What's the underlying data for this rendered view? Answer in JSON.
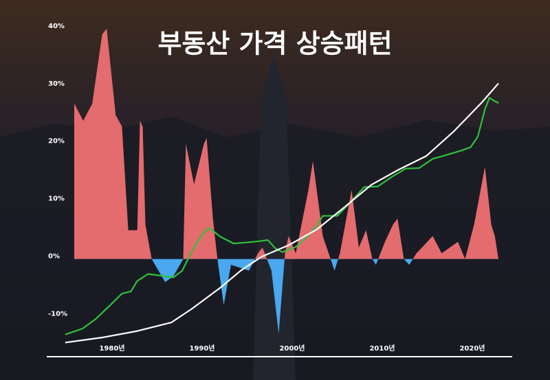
{
  "chart_data": {
    "type": "area-line",
    "title": "부동산 가격 상승패턴",
    "xlim": [
      1974,
      2025
    ],
    "xticks": [
      {
        "value": 1980,
        "label": "1980년"
      },
      {
        "value": 1990,
        "label": "1990년"
      },
      {
        "value": 2000,
        "label": "2000년"
      },
      {
        "value": 2010,
        "label": "2010년"
      },
      {
        "value": 2020,
        "label": "2020년"
      }
    ],
    "ylim": [
      -16,
      42
    ],
    "yticks": [
      {
        "value": -10,
        "label": "-10%"
      },
      {
        "value": 0,
        "label": "0%"
      },
      {
        "value": 10,
        "label": "10%"
      },
      {
        "value": 20,
        "label": "20%"
      },
      {
        "value": 30,
        "label": "30%"
      },
      {
        "value": 40,
        "label": "40%"
      }
    ],
    "grid": false,
    "series": [
      {
        "type": "area",
        "color": "#e46b6e",
        "negative_color": "#4aa8f0",
        "x": [
          1975.8,
          1976.8,
          1977.8,
          1978.9,
          1979.4,
          1980.4,
          1981.1,
          1981.8,
          1982.8,
          1983.1,
          1983.4,
          1983.7,
          1984.4,
          1985.9,
          1986.8,
          1987.9,
          1988.2,
          1989.1,
          1990.2,
          1990.5,
          1991.2,
          1991.7,
          1992.4,
          1993.2,
          1995.2,
          1996.2,
          1996.7,
          1997.7,
          1998.5,
          1999.2,
          1999.6,
          2000.4,
          2001.8,
          2002.3,
          2003.4,
          2004.7,
          2005.3,
          2006.6,
          2007.4,
          2008.2,
          2008.9,
          2009.3,
          2010.3,
          2011.2,
          2011.7,
          2012.4,
          2013.0,
          2013.8,
          2015.6,
          2016.6,
          2018.4,
          2019.2,
          2020.2,
          2021.4,
          2022.1,
          2022.5,
          2022.9
        ],
        "values": [
          27,
          24,
          27,
          39,
          40,
          25,
          23,
          5,
          5,
          24,
          23,
          6,
          0,
          -4,
          -3,
          0,
          20,
          13,
          20,
          21,
          7,
          0,
          -8,
          -1,
          -2,
          1,
          2,
          -2,
          -13,
          1,
          4,
          1,
          12,
          17,
          4,
          -2,
          1,
          12,
          2,
          5,
          0,
          -1,
          3,
          6,
          7,
          0,
          -1,
          1,
          4,
          1,
          3,
          0,
          6,
          16,
          6,
          4,
          0
        ]
      },
      {
        "type": "line",
        "color": "#2dc43a",
        "x": [
          1974.8,
          1976.7,
          1978.2,
          1979.8,
          1981.1,
          1982.1,
          1982.8,
          1984.0,
          1985.5,
          1986.8,
          1987.8,
          1988.9,
          1990.1,
          1990.8,
          1992.0,
          1993.5,
          1995.8,
          1997.3,
          1998.1,
          1998.9,
          2000.4,
          2001.5,
          2002.7,
          2003.4,
          2005.0,
          2006.5,
          2008.0,
          2009.5,
          2011.1,
          2012.6,
          2014.1,
          2015.6,
          2017.2,
          2018.7,
          2019.8,
          2020.6,
          2021.4,
          2021.9,
          2022.5,
          2022.9
        ],
        "values": [
          -13.1,
          -12.1,
          -10.4,
          -8.0,
          -6.0,
          -5.6,
          -3.8,
          -2.6,
          -2.9,
          -3.2,
          -2.0,
          1.5,
          4.5,
          5.4,
          3.9,
          2.7,
          3.0,
          3.3,
          1.9,
          1.2,
          2.1,
          3.6,
          5.7,
          7.5,
          7.5,
          9.9,
          12.5,
          12.6,
          14.3,
          15.7,
          15.8,
          17.4,
          18.1,
          18.8,
          19.4,
          21.2,
          26.0,
          28.0,
          27.4,
          27.1
        ]
      },
      {
        "type": "line",
        "color": "#ffffff",
        "x": [
          1974.8,
          1979.0,
          1982.8,
          1986.6,
          1988.9,
          1992.0,
          1994.3,
          1996.6,
          1999.6,
          2002.7,
          2005.8,
          2008.8,
          2011.8,
          2014.9,
          2017.9,
          2021.0,
          2022.9
        ],
        "values": [
          -14.5,
          -13.6,
          -12.5,
          -11.0,
          -8.6,
          -5.0,
          -2.0,
          0.4,
          2.4,
          5.1,
          9.0,
          12.9,
          15.5,
          17.9,
          22.1,
          27.1,
          30.5
        ]
      }
    ]
  }
}
